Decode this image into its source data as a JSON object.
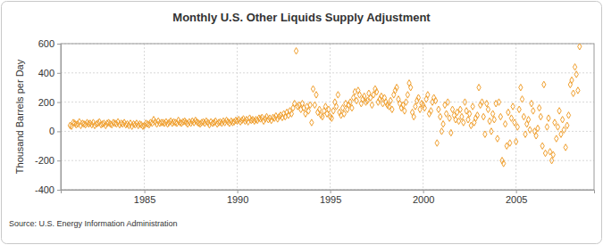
{
  "chart_data": {
    "type": "scatter",
    "title": "Monthly U.S. Other Liquids Supply Adjustment",
    "y_label": "Thousand Barrels per Day",
    "source": "Source: U.S. Energy Information Administration",
    "color": "#f0a030",
    "marker": "diamond",
    "grid": true,
    "xlim": [
      1980.5,
      2009.2
    ],
    "xticks": [
      1985,
      1990,
      1995,
      2000,
      2005
    ],
    "ylim": [
      -400,
      600
    ],
    "yticks": [
      -400,
      -200,
      0,
      200,
      400,
      600
    ],
    "x": [
      1981,
      1981.08,
      1981.17,
      1981.25,
      1981.33,
      1981.42,
      1981.5,
      1981.58,
      1981.67,
      1981.75,
      1981.83,
      1981.92,
      1982,
      1982.08,
      1982.17,
      1982.25,
      1982.33,
      1982.42,
      1982.5,
      1982.58,
      1982.67,
      1982.75,
      1982.83,
      1982.92,
      1983,
      1983.08,
      1983.17,
      1983.25,
      1983.33,
      1983.42,
      1983.5,
      1983.58,
      1983.67,
      1983.75,
      1983.83,
      1983.92,
      1984,
      1984.08,
      1984.17,
      1984.25,
      1984.33,
      1984.42,
      1984.5,
      1984.58,
      1984.67,
      1984.75,
      1984.83,
      1984.92,
      1985,
      1985.08,
      1985.17,
      1985.25,
      1985.33,
      1985.42,
      1985.5,
      1985.58,
      1985.67,
      1985.75,
      1985.83,
      1985.92,
      1986,
      1986.08,
      1986.17,
      1986.25,
      1986.33,
      1986.42,
      1986.5,
      1986.58,
      1986.67,
      1986.75,
      1986.83,
      1986.92,
      1987,
      1987.08,
      1987.17,
      1987.25,
      1987.33,
      1987.42,
      1987.5,
      1987.58,
      1987.67,
      1987.75,
      1987.83,
      1987.92,
      1988,
      1988.08,
      1988.17,
      1988.25,
      1988.33,
      1988.42,
      1988.5,
      1988.58,
      1988.67,
      1988.75,
      1988.83,
      1988.92,
      1989,
      1989.08,
      1989.17,
      1989.25,
      1989.33,
      1989.42,
      1989.5,
      1989.58,
      1989.67,
      1989.75,
      1989.83,
      1989.92,
      1990,
      1990.08,
      1990.17,
      1990.25,
      1990.33,
      1990.42,
      1990.5,
      1990.58,
      1990.67,
      1990.75,
      1990.83,
      1990.92,
      1991,
      1991.08,
      1991.17,
      1991.25,
      1991.33,
      1991.42,
      1991.5,
      1991.58,
      1991.67,
      1991.75,
      1991.83,
      1991.92,
      1992,
      1992.08,
      1992.17,
      1992.25,
      1992.33,
      1992.42,
      1992.5,
      1992.58,
      1992.67,
      1992.75,
      1992.83,
      1992.92,
      1993,
      1993.08,
      1993.17,
      1993.25,
      1993.33,
      1993.42,
      1993.5,
      1993.58,
      1993.67,
      1993.75,
      1993.83,
      1993.92,
      1994,
      1994.08,
      1994.17,
      1994.25,
      1994.33,
      1994.42,
      1994.5,
      1994.58,
      1994.67,
      1994.75,
      1994.83,
      1994.92,
      1995,
      1995.08,
      1995.17,
      1995.25,
      1995.33,
      1995.42,
      1995.5,
      1995.58,
      1995.67,
      1995.75,
      1995.83,
      1995.92,
      1996,
      1996.08,
      1996.17,
      1996.25,
      1996.33,
      1996.42,
      1996.5,
      1996.58,
      1996.67,
      1996.75,
      1996.83,
      1996.92,
      1997,
      1997.08,
      1997.17,
      1997.25,
      1997.33,
      1997.42,
      1997.5,
      1997.58,
      1997.67,
      1997.75,
      1997.83,
      1997.92,
      1998,
      1998.08,
      1998.17,
      1998.25,
      1998.33,
      1998.42,
      1998.5,
      1998.58,
      1998.67,
      1998.75,
      1998.83,
      1998.92,
      1999,
      1999.08,
      1999.17,
      1999.25,
      1999.33,
      1999.42,
      1999.5,
      1999.58,
      1999.67,
      1999.75,
      1999.83,
      1999.92,
      2000,
      2000.08,
      2000.17,
      2000.25,
      2000.33,
      2000.42,
      2000.5,
      2000.58,
      2000.67,
      2000.75,
      2000.83,
      2000.92,
      2001,
      2001.08,
      2001.17,
      2001.25,
      2001.33,
      2001.42,
      2001.5,
      2001.58,
      2001.67,
      2001.75,
      2001.83,
      2001.92,
      2002,
      2002.08,
      2002.17,
      2002.25,
      2002.33,
      2002.42,
      2002.5,
      2002.58,
      2002.67,
      2002.75,
      2002.83,
      2002.92,
      2003,
      2003.08,
      2003.17,
      2003.25,
      2003.33,
      2003.42,
      2003.5,
      2003.58,
      2003.67,
      2003.75,
      2003.83,
      2003.92,
      2004,
      2004.08,
      2004.17,
      2004.25,
      2004.33,
      2004.42,
      2004.5,
      2004.58,
      2004.67,
      2004.75,
      2004.83,
      2004.92,
      2005,
      2005.08,
      2005.17,
      2005.25,
      2005.33,
      2005.42,
      2005.5,
      2005.58,
      2005.67,
      2005.75,
      2005.83,
      2005.92,
      2006,
      2006.08,
      2006.17,
      2006.25,
      2006.33,
      2006.42,
      2006.5,
      2006.58,
      2006.67,
      2006.75,
      2006.83,
      2006.92,
      2007,
      2007.08,
      2007.17,
      2007.25,
      2007.33,
      2007.42,
      2007.5,
      2007.58,
      2007.67,
      2007.75,
      2007.83,
      2007.92,
      2008,
      2008.08,
      2008.17,
      2008.25,
      2008.33,
      2008.42
    ],
    "values": [
      40,
      35,
      60,
      55,
      45,
      50,
      65,
      40,
      55,
      50,
      45,
      60,
      50,
      55,
      45,
      60,
      40,
      50,
      55,
      65,
      45,
      50,
      55,
      40,
      55,
      60,
      50,
      45,
      60,
      55,
      50,
      65,
      45,
      55,
      50,
      60,
      45,
      50,
      40,
      55,
      35,
      50,
      45,
      55,
      40,
      50,
      45,
      35,
      40,
      55,
      50,
      45,
      60,
      55,
      80,
      65,
      50,
      70,
      55,
      60,
      60,
      55,
      65,
      50,
      60,
      70,
      55,
      65,
      60,
      55,
      75,
      60,
      55,
      65,
      70,
      60,
      50,
      65,
      55,
      70,
      60,
      75,
      65,
      55,
      50,
      60,
      65,
      55,
      70,
      60,
      45,
      65,
      55,
      60,
      70,
      50,
      60,
      65,
      55,
      70,
      60,
      75,
      65,
      55,
      70,
      60,
      65,
      75,
      70,
      80,
      65,
      75,
      85,
      70,
      80,
      65,
      90,
      75,
      80,
      70,
      80,
      75,
      90,
      85,
      95,
      70,
      85,
      100,
      80,
      90,
      75,
      95,
      90,
      105,
      85,
      100,
      110,
      95,
      120,
      100,
      130,
      110,
      140,
      120,
      160,
      190,
      550,
      170,
      180,
      150,
      190,
      160,
      120,
      170,
      140,
      180,
      60,
      290,
      180,
      250,
      130,
      150,
      110,
      100,
      140,
      170,
      120,
      150,
      100,
      90,
      140,
      200,
      170,
      250,
      130,
      110,
      160,
      120,
      190,
      150,
      180,
      200,
      160,
      230,
      270,
      210,
      280,
      250,
      190,
      220,
      240,
      200,
      210,
      260,
      230,
      180,
      250,
      290,
      270,
      200,
      220,
      240,
      190,
      230,
      200,
      180,
      170,
      210,
      150,
      250,
      280,
      300,
      220,
      190,
      160,
      180,
      140,
      200,
      250,
      330,
      300,
      130,
      100,
      170,
      210,
      230,
      150,
      190,
      180,
      160,
      220,
      250,
      120,
      140,
      200,
      230,
      210,
      -80,
      150,
      100,
      0,
      50,
      180,
      120,
      200,
      90,
      -10,
      150,
      110,
      80,
      130,
      70,
      150,
      100,
      60,
      200,
      140,
      80,
      120,
      40,
      170,
      60,
      90,
      110,
      300,
      180,
      200,
      100,
      -20,
      190,
      150,
      70,
      0,
      120,
      80,
      190,
      -50,
      200,
      100,
      -200,
      -220,
      50,
      -100,
      130,
      -80,
      90,
      170,
      60,
      -70,
      30,
      150,
      300,
      220,
      100,
      -20,
      50,
      80,
      10,
      190,
      140,
      0,
      -30,
      20,
      160,
      100,
      -100,
      320,
      -150,
      30,
      90,
      -140,
      -200,
      -160,
      60,
      -50,
      30,
      140,
      -20,
      80,
      10,
      -110,
      40,
      110,
      320,
      350,
      260,
      440,
      390,
      280,
      580
    ]
  }
}
